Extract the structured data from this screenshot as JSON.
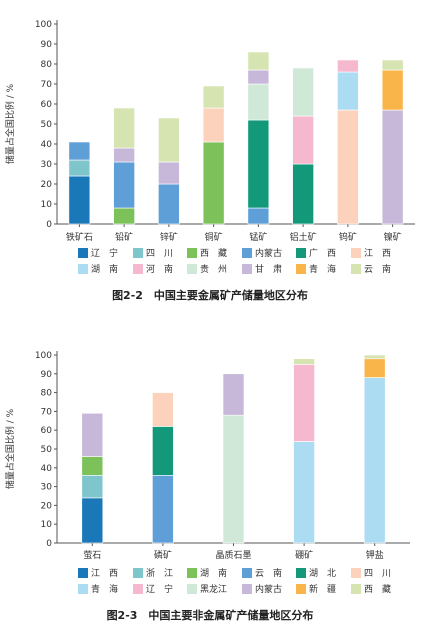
{
  "chart_data": [
    {
      "type": "bar",
      "stacked": true,
      "title": "图2-2　中国主要金属矿产储量地区分布",
      "ylabel": "储量占全国比例 / %",
      "ylim": [
        0,
        100
      ],
      "yticks": [
        0,
        10,
        20,
        30,
        40,
        50,
        60,
        70,
        80,
        90,
        100
      ],
      "categories": [
        "铁矿石",
        "铅矿",
        "锌矿",
        "铜矿",
        "锰矿",
        "铝土矿",
        "钨矿",
        "镍矿"
      ],
      "legend_rows": [
        [
          "辽　宁",
          "四　川",
          "西　藏",
          "内蒙古",
          "广　西",
          "江　西"
        ],
        [
          "湖　南",
          "河　南",
          "贵　州",
          "甘　肃",
          "青　海",
          "云　南"
        ]
      ],
      "series": [
        {
          "name": "辽　宁",
          "color": "#1a78b8",
          "values": [
            24,
            0,
            0,
            0,
            0,
            0,
            0,
            0
          ]
        },
        {
          "name": "四　川",
          "color": "#7fc6cc",
          "values": [
            8,
            0,
            0,
            0,
            0,
            0,
            0,
            0
          ]
        },
        {
          "name": "西　藏",
          "color": "#7cc15a",
          "values": [
            0,
            8,
            0,
            41,
            0,
            0,
            0,
            0
          ]
        },
        {
          "name": "内蒙古",
          "color": "#5d9fd6",
          "values": [
            9,
            23,
            20,
            0,
            8,
            0,
            0,
            0
          ]
        },
        {
          "name": "广　西",
          "color": "#13987a",
          "values": [
            0,
            0,
            0,
            0,
            44,
            30,
            0,
            0
          ]
        },
        {
          "name": "江　西",
          "color": "#fcd2bd",
          "values": [
            0,
            0,
            0,
            17,
            0,
            0,
            57,
            0
          ]
        },
        {
          "name": "湖　南",
          "color": "#acdcf2",
          "values": [
            0,
            0,
            0,
            0,
            0,
            0,
            19,
            0
          ]
        },
        {
          "name": "河　南",
          "color": "#f5b8cf",
          "values": [
            0,
            0,
            0,
            0,
            0,
            24,
            6,
            0
          ]
        },
        {
          "name": "贵　州",
          "color": "#cfe8d8",
          "values": [
            0,
            0,
            0,
            0,
            18,
            24,
            0,
            0
          ]
        },
        {
          "name": "甘　肃",
          "color": "#c7b8da",
          "values": [
            0,
            7,
            11,
            0,
            7,
            0,
            0,
            57
          ]
        },
        {
          "name": "青　海",
          "color": "#f9b54a",
          "values": [
            0,
            0,
            0,
            0,
            0,
            0,
            0,
            20
          ]
        },
        {
          "name": "云　南",
          "color": "#d5e4b0",
          "values": [
            0,
            20,
            22,
            11,
            9,
            0,
            0,
            5
          ]
        }
      ]
    },
    {
      "type": "bar",
      "stacked": true,
      "title": "图2-3　中国主要非金属矿产储量地区分布",
      "ylabel": "储量占全国比例 / %",
      "ylim": [
        0,
        100
      ],
      "yticks": [
        0,
        10,
        20,
        30,
        40,
        50,
        60,
        70,
        80,
        90,
        100
      ],
      "categories": [
        "萤石",
        "磷矿",
        "晶质石墨",
        "硼矿",
        "钾盐"
      ],
      "legend_rows": [
        [
          "江　西",
          "浙　江",
          "湖　南",
          "云　南",
          "湖　北",
          "四　川"
        ],
        [
          "青　海",
          "辽　宁",
          "黑龙江",
          "内蒙古",
          "新　疆",
          "西　藏"
        ]
      ],
      "series": [
        {
          "name": "江　西",
          "color": "#1a78b8",
          "values": [
            24,
            0,
            0,
            0,
            0
          ]
        },
        {
          "name": "浙　江",
          "color": "#7fc6cc",
          "values": [
            12,
            0,
            0,
            0,
            0
          ]
        },
        {
          "name": "湖　南",
          "color": "#7cc15a",
          "values": [
            10,
            0,
            0,
            0,
            0
          ]
        },
        {
          "name": "云　南",
          "color": "#5d9fd6",
          "values": [
            0,
            36,
            0,
            0,
            0
          ]
        },
        {
          "name": "湖　北",
          "color": "#13987a",
          "values": [
            0,
            26,
            0,
            0,
            0
          ]
        },
        {
          "name": "四　川",
          "color": "#fcd2bd",
          "values": [
            0,
            18,
            0,
            0,
            0
          ]
        },
        {
          "name": "青　海",
          "color": "#acdcf2",
          "values": [
            0,
            0,
            0,
            54,
            88
          ]
        },
        {
          "name": "辽　宁",
          "color": "#f5b8cf",
          "values": [
            0,
            0,
            0,
            41,
            0
          ]
        },
        {
          "name": "黑龙江",
          "color": "#cfe8d8",
          "values": [
            0,
            0,
            68,
            0,
            0
          ]
        },
        {
          "name": "内蒙古",
          "color": "#c7b8da",
          "values": [
            23,
            0,
            22,
            0,
            0
          ]
        },
        {
          "name": "新　疆",
          "color": "#f9b54a",
          "values": [
            0,
            0,
            0,
            0,
            10
          ]
        },
        {
          "name": "西　藏",
          "color": "#d5e4b0",
          "values": [
            0,
            0,
            0,
            3,
            2
          ]
        }
      ]
    }
  ]
}
